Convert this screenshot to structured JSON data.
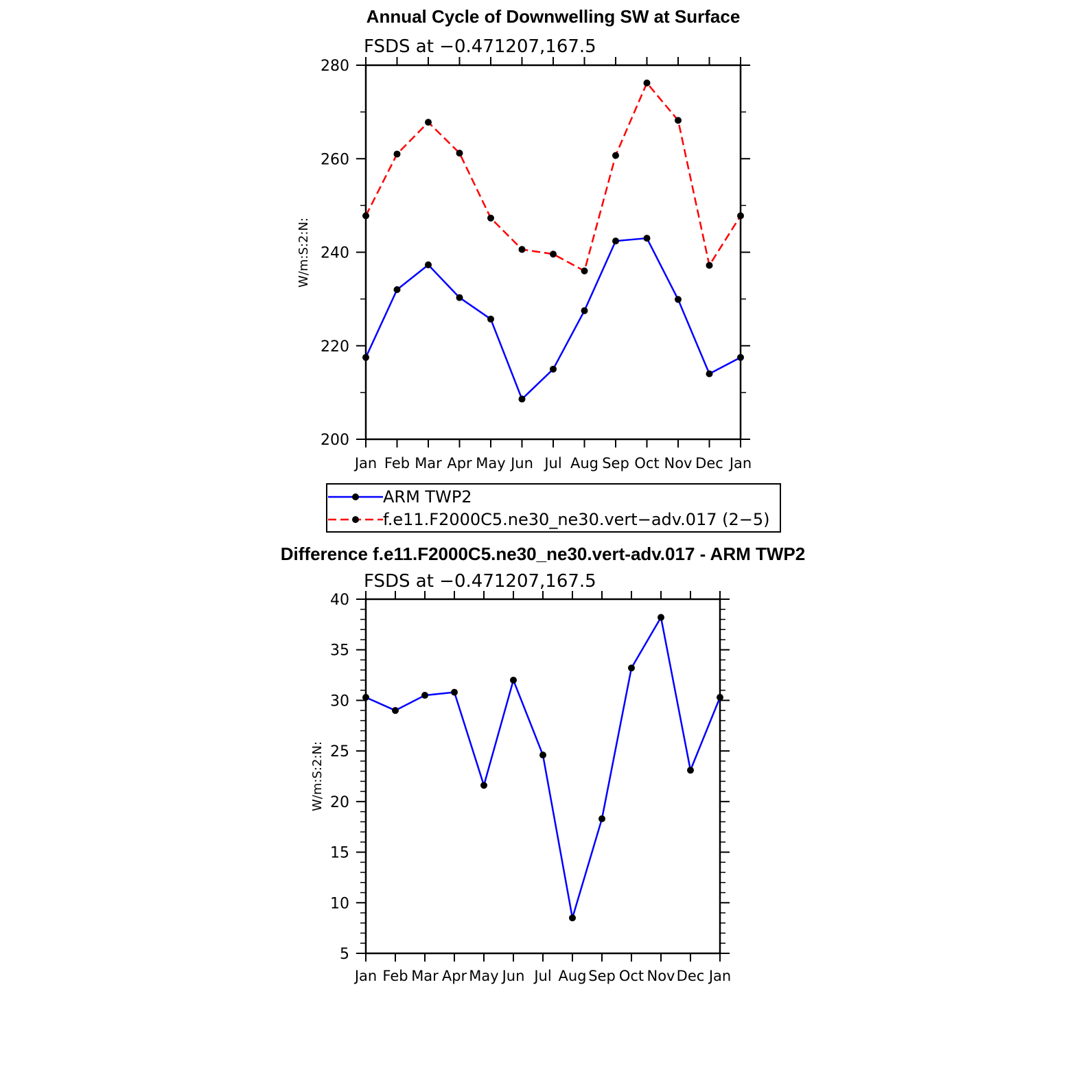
{
  "chart_data": [
    {
      "type": "line",
      "title": "Annual Cycle of Downwelling SW at Surface",
      "subtitle": "FSDS at −0.471207,167.5",
      "xlabel": "",
      "ylabel": "W/m:S:2:N:",
      "categories": [
        "Jan",
        "Feb",
        "Mar",
        "Apr",
        "May",
        "Jun",
        "Jul",
        "Aug",
        "Sep",
        "Oct",
        "Nov",
        "Dec",
        "Jan"
      ],
      "ylim": [
        200,
        280
      ],
      "yticks": [
        200,
        220,
        240,
        260,
        280
      ],
      "series": [
        {
          "name": "ARM TWP2",
          "color": "#0000ff",
          "dash": "solid",
          "values": [
            217.5,
            232.0,
            237.3,
            230.3,
            225.7,
            208.6,
            215.0,
            227.5,
            242.4,
            243.0,
            229.9,
            214.0,
            217.5
          ]
        },
        {
          "name": "f.e11.F2000C5.ne30_ne30.vert−adv.017 (2−5)",
          "color": "#ff0000",
          "dash": "dashed",
          "values": [
            247.8,
            261.0,
            267.8,
            261.2,
            247.3,
            240.6,
            239.6,
            236.0,
            260.7,
            276.2,
            268.2,
            237.2,
            247.8
          ]
        }
      ],
      "legend": "below"
    },
    {
      "type": "line",
      "title": "Difference f.e11.F2000C5.ne30_ne30.vert-adv.017 - ARM TWP2",
      "subtitle": "FSDS at −0.471207,167.5",
      "xlabel": "",
      "ylabel": "W/m:S:2:N:",
      "categories": [
        "Jan",
        "Feb",
        "Mar",
        "Apr",
        "May",
        "Jun",
        "Jul",
        "Aug",
        "Sep",
        "Oct",
        "Nov",
        "Dec",
        "Jan"
      ],
      "ylim": [
        5,
        40
      ],
      "yticks": [
        5,
        10,
        15,
        20,
        25,
        30,
        35,
        40
      ],
      "series": [
        {
          "color": "#0000ff",
          "dash": "solid",
          "values": [
            30.3,
            29.0,
            30.5,
            30.8,
            21.6,
            32.0,
            24.6,
            8.5,
            18.3,
            33.2,
            38.2,
            23.1,
            30.3
          ]
        }
      ]
    }
  ]
}
